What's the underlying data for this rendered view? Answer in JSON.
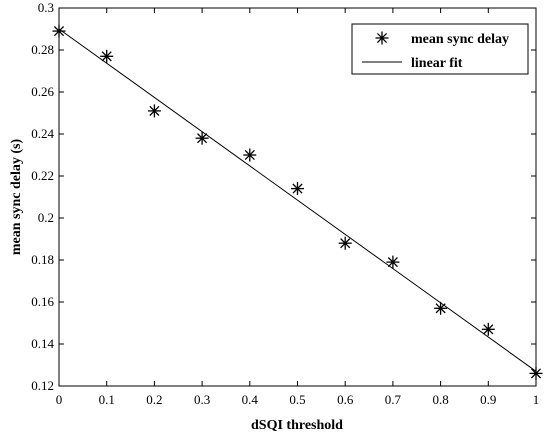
{
  "chart_data": {
    "type": "scatter",
    "xlabel": "dSQI threshold",
    "ylabel": "mean sync delay (s)",
    "xlim": [
      0,
      1
    ],
    "ylim": [
      0.12,
      0.3
    ],
    "x_ticks": [
      "0",
      "0.1",
      "0.2",
      "0.3",
      "0.4",
      "0.5",
      "0.6",
      "0.7",
      "0.8",
      "0.9",
      "1"
    ],
    "y_ticks": [
      "0.12",
      "0.14",
      "0.16",
      "0.18",
      "0.2",
      "0.22",
      "0.24",
      "0.26",
      "0.28",
      "0.3"
    ],
    "grid": false,
    "legend_position": "top-right",
    "series": [
      {
        "name": "mean sync delay",
        "marker": "asterisk",
        "x": [
          0,
          0.1,
          0.2,
          0.3,
          0.4,
          0.5,
          0.6,
          0.7,
          0.8,
          0.9,
          1.0
        ],
        "y": [
          0.289,
          0.277,
          0.251,
          0.238,
          0.23,
          0.214,
          0.188,
          0.179,
          0.157,
          0.147,
          0.126
        ]
      },
      {
        "name": "linear fit",
        "style": "line",
        "x": [
          0,
          1
        ],
        "y": [
          0.29,
          0.127
        ]
      }
    ],
    "colors": {
      "marker": "#000000",
      "line": "#000000",
      "axes": "#000000"
    }
  }
}
